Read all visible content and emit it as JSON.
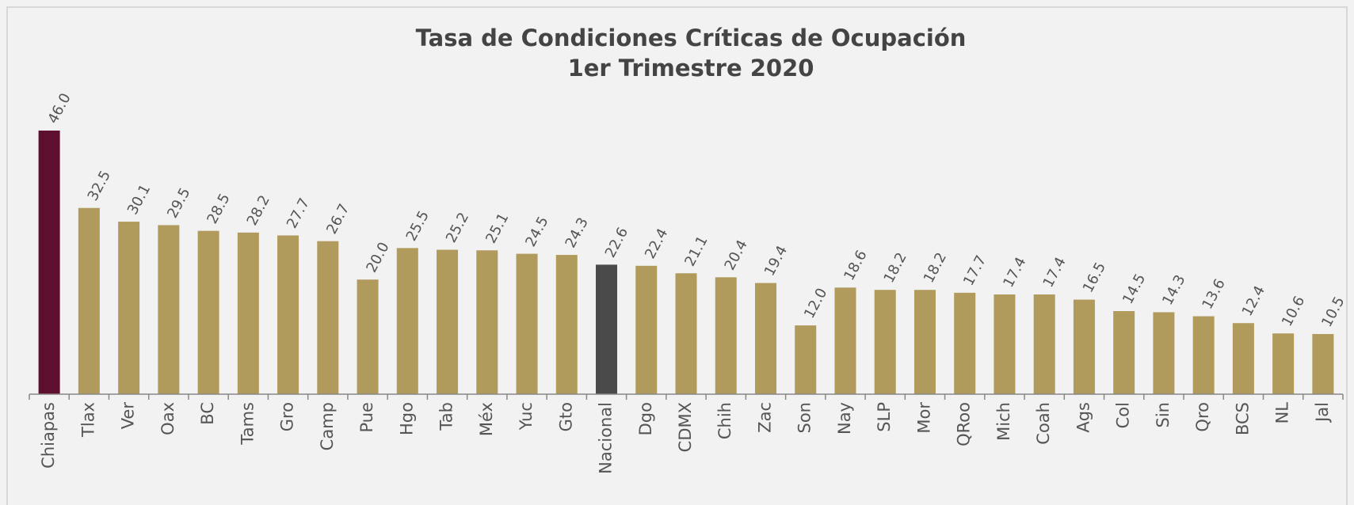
{
  "chart_data": {
    "type": "bar",
    "title": "Tasa de Condiciones Críticas de Ocupación",
    "subtitle": "1er Trimestre 2020",
    "categories": [
      "Chiapas",
      "Tlax",
      "Ver",
      "Oax",
      "BC",
      "Tams",
      "Gro",
      "Camp",
      "Pue",
      "Hgo",
      "Tab",
      "Méx",
      "Yuc",
      "Gto",
      "Nacional",
      "Dgo",
      "CDMX",
      "Chih",
      "Zac",
      "Son",
      "Nay",
      "SLP",
      "Mor",
      "QRoo",
      "Mich",
      "Coah",
      "Ags",
      "Col",
      "Sin",
      "Qro",
      "BCS",
      "NL",
      "Jal"
    ],
    "values": [
      46.0,
      32.5,
      30.1,
      29.5,
      28.5,
      28.2,
      27.7,
      26.7,
      20.0,
      25.5,
      25.2,
      25.1,
      24.5,
      24.3,
      22.6,
      22.4,
      21.1,
      20.4,
      19.4,
      12.0,
      18.6,
      18.2,
      18.2,
      17.7,
      17.4,
      17.4,
      16.5,
      14.5,
      14.3,
      13.6,
      12.4,
      10.6,
      10.5
    ],
    "value_labels": [
      "46.0",
      "32.5",
      "30.1",
      "29.5",
      "28.5",
      "28.2",
      "27.7",
      "26.7",
      "20.0",
      "25.5",
      "25.2",
      "25.1",
      "24.5",
      "24.3",
      "22.6",
      "22.4",
      "21.1",
      "20.4",
      "19.4",
      "12.0",
      "18.6",
      "18.2",
      "18.2",
      "17.7",
      "17.4",
      "17.4",
      "16.5",
      "14.5",
      "14.3",
      "13.6",
      "12.4",
      "10.6",
      "10.5"
    ],
    "colors": [
      "#5e0f30",
      "#b09a5c",
      "#b09a5c",
      "#b09a5c",
      "#b09a5c",
      "#b09a5c",
      "#b09a5c",
      "#b09a5c",
      "#b09a5c",
      "#b09a5c",
      "#b09a5c",
      "#b09a5c",
      "#b09a5c",
      "#b09a5c",
      "#4a4a4a",
      "#b09a5c",
      "#b09a5c",
      "#b09a5c",
      "#b09a5c",
      "#b09a5c",
      "#b09a5c",
      "#b09a5c",
      "#b09a5c",
      "#b09a5c",
      "#b09a5c",
      "#b09a5c",
      "#b09a5c",
      "#b09a5c",
      "#b09a5c",
      "#b09a5c",
      "#b09a5c",
      "#b09a5c",
      "#b09a5c"
    ],
    "ylim": [
      0,
      50
    ]
  }
}
